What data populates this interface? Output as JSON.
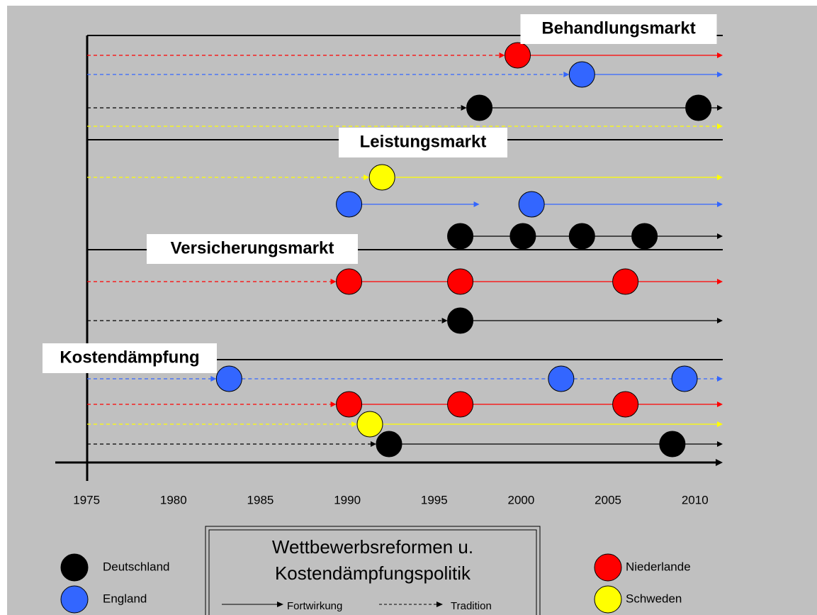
{
  "chart_data": {
    "type": "timeline",
    "xlim": [
      1973.2,
      2011.6
    ],
    "xticks": [
      1975,
      1980,
      1985,
      1990,
      1995,
      2000,
      2005,
      2010
    ],
    "series": [
      {
        "name": "Deutschland",
        "color": "#000000"
      },
      {
        "name": "England",
        "color": "#3366ff"
      },
      {
        "name": "Niederlande",
        "color": "#ff0000"
      },
      {
        "name": "Schweden",
        "color": "#ffff00"
      }
    ],
    "sections": [
      {
        "label": "Behandlungsmarkt",
        "rows": [
          {
            "country": "Niederlande",
            "tradition": true,
            "continuation": "solid",
            "values": [
              1999.8
            ]
          },
          {
            "country": "England",
            "tradition": true,
            "continuation": "solid",
            "values": [
              2003.5
            ]
          },
          {
            "country": "Deutschland",
            "tradition": true,
            "continuation": "solid",
            "values": [
              1997.6,
              2010.2
            ]
          },
          {
            "country": "Schweden",
            "tradition": true,
            "continuation": "solid",
            "values": []
          }
        ]
      },
      {
        "label": "Leistungsmarkt",
        "rows": [
          {
            "country": "Schweden",
            "tradition": true,
            "continuation": "solid",
            "values": [
              1992.0
            ]
          },
          {
            "country": "England",
            "tradition": false,
            "continuation": "solid",
            "values": [
              1990.1,
              2000.6
            ],
            "until": [
              1997.6,
              null
            ]
          },
          {
            "country": "Deutschland",
            "tradition": false,
            "continuation": "solid",
            "values": [
              1996.5,
              2000.1,
              2003.5,
              2007.1
            ]
          }
        ]
      },
      {
        "label": "Versicherungsmarkt",
        "rows": [
          {
            "country": "Niederlande",
            "tradition": true,
            "continuation": "solid",
            "values": [
              1990.1,
              1996.5,
              2006.0
            ]
          },
          {
            "country": "Deutschland",
            "tradition": true,
            "continuation": "solid",
            "values": [
              1996.5
            ]
          }
        ]
      },
      {
        "label": "Kostendämpfung",
        "rows": [
          {
            "country": "England",
            "tradition": true,
            "continuation": "dashed",
            "values": [
              1983.2,
              2002.3,
              2009.4
            ]
          },
          {
            "country": "Niederlande",
            "tradition": true,
            "continuation": "solid",
            "values": [
              1990.1,
              1996.5,
              2006.0
            ]
          },
          {
            "country": "Schweden",
            "tradition": true,
            "continuation": "solid",
            "values": [
              1991.3
            ]
          },
          {
            "country": "Deutschland",
            "tradition": true,
            "continuation": "solid",
            "values": [
              1992.4,
              2008.7
            ]
          }
        ]
      }
    ],
    "legend_title": [
      "Wettbewerbsreformen u.",
      "Kostendämpfungspolitik"
    ],
    "solid_label": "Fortwirkung",
    "dashed_label": "Tradition"
  }
}
